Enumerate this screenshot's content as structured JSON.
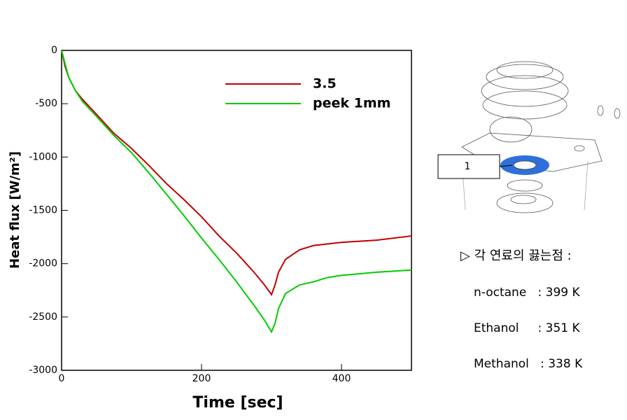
{
  "chart_data": {
    "type": "line",
    "xlabel": "Time [sec]",
    "ylabel": "Heat flux [W/m²]",
    "xlim": [
      0,
      500
    ],
    "xticks": [
      0,
      200,
      400
    ],
    "ylim": [
      -3000,
      0
    ],
    "yticks": [
      0,
      -500,
      -1000,
      -1500,
      -2000,
      -2500,
      -3000
    ],
    "legend": "upper right",
    "series": [
      {
        "name": "3.5",
        "color": "#c00000",
        "x": [
          0,
          5,
          10,
          20,
          30,
          50,
          75,
          100,
          125,
          150,
          175,
          200,
          225,
          250,
          275,
          290,
          300,
          305,
          310,
          320,
          340,
          360,
          400,
          450,
          500
        ],
        "values": [
          0,
          -150,
          -250,
          -380,
          -460,
          -600,
          -780,
          -920,
          -1080,
          -1250,
          -1400,
          -1560,
          -1740,
          -1900,
          -2080,
          -2200,
          -2290,
          -2200,
          -2080,
          -1960,
          -1870,
          -1830,
          -1800,
          -1780,
          -1740
        ]
      },
      {
        "name": "peek 1mm",
        "color": "#00cc00",
        "x": [
          0,
          10,
          20,
          30,
          50,
          75,
          100,
          125,
          150,
          175,
          200,
          225,
          250,
          275,
          290,
          300,
          305,
          310,
          320,
          340,
          360,
          380,
          400,
          450,
          500
        ],
        "values": [
          0,
          -250,
          -380,
          -480,
          -620,
          -800,
          -960,
          -1150,
          -1350,
          -1550,
          -1760,
          -1960,
          -2170,
          -2390,
          -2530,
          -2640,
          -2560,
          -2420,
          -2280,
          -2200,
          -2170,
          -2130,
          -2110,
          -2080,
          -2060
        ]
      }
    ],
    "callout": "1",
    "annotations": [
      "▷ 각 연료의 끓는점 :",
      "n-octane   : 399 K",
      "Ethanol     : 351 K",
      "Methanol   : 338 K"
    ]
  }
}
